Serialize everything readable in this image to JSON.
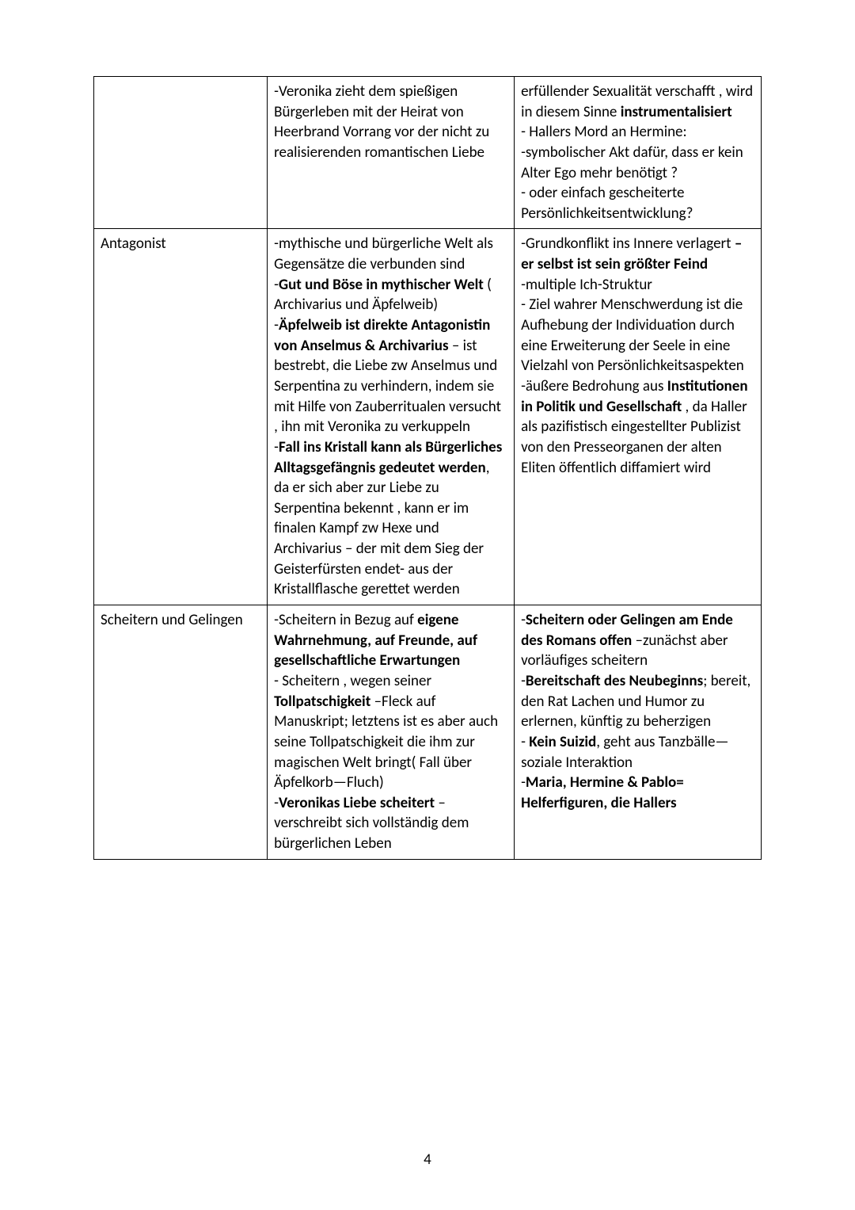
{
  "page_number": "4",
  "table": {
    "rows": [
      {
        "c1": "",
        "c2": "-Veronika zieht dem spießigen Bürgerleben mit der Heirat von Heerbrand Vorrang vor der nicht zu realisierenden romantischen Liebe",
        "c3": "erfüllender Sexualität verschafft , wird in diesem Sinne <b>instrumentalisiert</b><br>- Hallers Mord an Hermine:<br>-symbolischer Akt dafür, dass er kein Alter Ego mehr benötigt ?<br>- oder einfach gescheiterte Persönlichkeitsentwicklung?"
      },
      {
        "c1": "Antagonist",
        "c2": "-mythische und bürgerliche Welt als Gegensätze die verbunden sind<br>-<b>Gut und Böse in mythischer Welt</b> ( Archivarius und Äpfelweib)<br>-<b>Äpfelweib ist direkte Antagonistin von Anselmus & Archivarius</b> – ist bestrebt, die Liebe zw Anselmus und Serpentina zu verhindern, indem sie mit Hilfe von Zauberritualen versucht , ihn mit Veronika zu verkuppeln<br>-<b>Fall ins Kristall kann als Bürgerliches Alltagsgefängnis gedeutet werden</b>, da er sich aber zur Liebe zu Serpentina bekennt , kann er im finalen Kampf zw Hexe und Archivarius – der mit dem Sieg der Geisterfürsten endet- aus der Kristallflasche gerettet werden",
        "c3": "-Grundkonflikt ins Innere verlagert <b>– er selbst ist sein größter Feind</b><br>-multiple Ich-Struktur<br>- Ziel wahrer Menschwerdung ist die Aufhebung der Individuation durch eine Erweiterung der Seele in eine Vielzahl von Persönlichkeitsaspekten<br>-äußere Bedrohung aus <b>Institutionen in Politik und Gesellschaft</b> , da Haller als pazifistisch eingestellter Publizist von den Presseorganen der alten Eliten öffentlich diffamiert wird"
      },
      {
        "c1": "Scheitern und Gelingen",
        "c2": "-Scheitern in Bezug auf <b>eigene Wahrnehmung, auf Freunde, auf gesellschaftliche Erwartungen</b><br>- Scheitern , wegen seiner <b>Tollpatschigkeit</b> –Fleck auf Manuskript; letztens ist es aber auch seine Tollpatschigkeit die ihm zur magischen Welt bringt( Fall über Äpfelkorb—Fluch)<br>-<b>Veronikas Liebe scheitert</b> – verschreibt sich vollständig dem bürgerlichen Leben",
        "c3": "-<b>Scheitern oder Gelingen am Ende des Romans offen</b> –zunächst aber vorläufiges scheitern<br>-<b>Bereitschaft des Neubeginns</b>; bereit, den Rat Lachen und Humor zu erlernen, künftig zu beherzigen<br>- <b>Kein Suizid</b>, geht aus Tanzbälle—soziale Interaktion<br>-<b>Maria, Hermine & Pablo= Helferfiguren, die Hallers</b>"
      }
    ]
  }
}
